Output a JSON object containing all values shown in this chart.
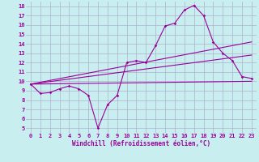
{
  "background_color": "#c8eef0",
  "grid_color": "#b0b0cc",
  "line_color": "#990099",
  "xlabel": "Windchill (Refroidissement éolien,°C)",
  "xlim": [
    -0.5,
    23.5
  ],
  "ylim": [
    4.5,
    18.5
  ],
  "xticks": [
    0,
    1,
    2,
    3,
    4,
    5,
    6,
    7,
    8,
    9,
    10,
    11,
    12,
    13,
    14,
    15,
    16,
    17,
    18,
    19,
    20,
    21,
    22,
    23
  ],
  "yticks": [
    5,
    6,
    7,
    8,
    9,
    10,
    11,
    12,
    13,
    14,
    15,
    16,
    17,
    18
  ],
  "line1_x": [
    0,
    1,
    2,
    3,
    4,
    5,
    6,
    7,
    8,
    9,
    10,
    11,
    12,
    13,
    14,
    15,
    16,
    17,
    18,
    19,
    20,
    21,
    22,
    23
  ],
  "line1_y": [
    9.7,
    8.7,
    8.8,
    9.2,
    9.5,
    9.2,
    8.5,
    5.0,
    7.5,
    8.5,
    12.0,
    12.2,
    12.0,
    13.8,
    15.9,
    16.2,
    17.6,
    18.1,
    17.0,
    14.2,
    13.0,
    12.2,
    10.5,
    10.3
  ],
  "line2_x": [
    0,
    23
  ],
  "line2_y": [
    9.7,
    14.2
  ],
  "line3_x": [
    0,
    23
  ],
  "line3_y": [
    9.7,
    12.8
  ],
  "line4_x": [
    0,
    23
  ],
  "line4_y": [
    9.7,
    10.0
  ]
}
